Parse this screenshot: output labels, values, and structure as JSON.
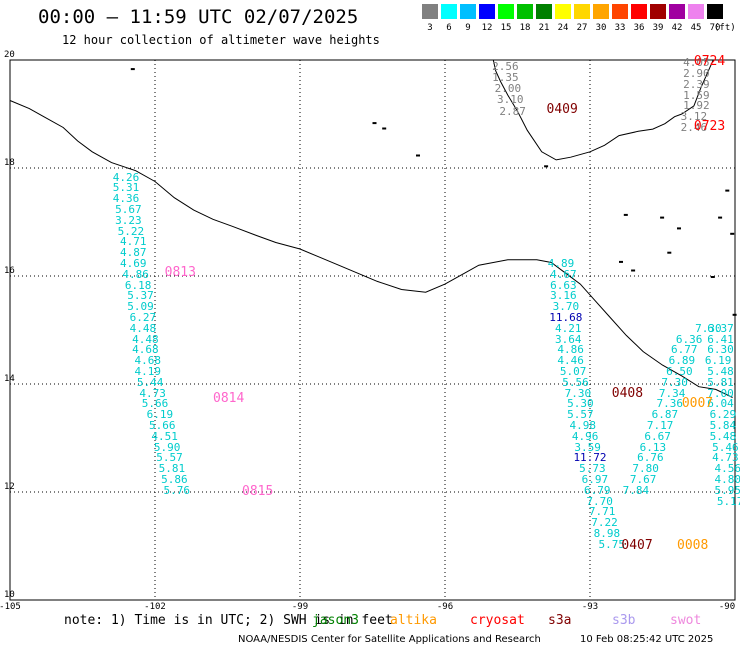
{
  "header": {
    "title": "00:00 — 11:59 UTC 02/07/2025",
    "subtitle": "12 hour collection of altimeter wave heights"
  },
  "legend": {
    "levels": [
      "3",
      "6",
      "9",
      "12",
      "15",
      "18",
      "21",
      "24",
      "27",
      "30",
      "33",
      "36",
      "39",
      "42",
      "45",
      "70"
    ],
    "colors": [
      "#808080",
      "#00ffff",
      "#00bfff",
      "#0000ff",
      "#00ff00",
      "#00c000",
      "#008000",
      "#ffff00",
      "#ffd700",
      "#ffa500",
      "#ff4500",
      "#ff0000",
      "#a00000",
      "#a000a0",
      "#ee82ee",
      "#000000"
    ],
    "unit": "(ft)"
  },
  "axes": {
    "lat_labels": [
      {
        "text": "20",
        "lat": 20
      },
      {
        "text": "18",
        "lat": 18
      },
      {
        "text": "16",
        "lat": 16
      },
      {
        "text": "14",
        "lat": 14
      },
      {
        "text": "12",
        "lat": 12
      },
      {
        "text": "10",
        "lat": 10
      }
    ],
    "lon_labels": [
      {
        "text": "-105",
        "lon": -105
      },
      {
        "text": "-102",
        "lon": -102
      },
      {
        "text": "-99",
        "lon": -99
      },
      {
        "text": "-96",
        "lon": -96
      },
      {
        "text": "-93",
        "lon": -93
      },
      {
        "text": "-90",
        "lon": -90
      }
    ],
    "lon_range": [
      -105,
      -90
    ],
    "lat_range": [
      10,
      20
    ]
  },
  "colors": {
    "cyan": "#00cccc",
    "gray": "#808080",
    "blue": "#0000b0",
    "darkred": "#800000",
    "red": "#ff0000",
    "pink": "#ff66cc",
    "orange": "#ff9900",
    "green": "#008000",
    "lilac": "#aa99ee",
    "magenta": "#ee88dd"
  },
  "tracks": [
    {
      "id": "track-west",
      "color": "#00cccc",
      "points": [
        {
          "lon": -102.6,
          "lat": 17.84,
          "v": "4.26"
        },
        {
          "lon": -102.6,
          "lat": 17.64,
          "v": "5.31"
        },
        {
          "lon": -102.6,
          "lat": 17.44,
          "v": "4.36"
        },
        {
          "lon": -102.55,
          "lat": 17.24,
          "v": "5.67"
        },
        {
          "lon": -102.55,
          "lat": 17.04,
          "v": "3.23"
        },
        {
          "lon": -102.5,
          "lat": 16.84,
          "v": "5.22"
        },
        {
          "lon": -102.45,
          "lat": 16.64,
          "v": "4.71"
        },
        {
          "lon": -102.45,
          "lat": 16.44,
          "v": "4.87"
        },
        {
          "lon": -102.45,
          "lat": 16.24,
          "v": "4.69"
        },
        {
          "lon": -102.4,
          "lat": 16.04,
          "v": "4.86"
        },
        {
          "lon": -102.35,
          "lat": 15.84,
          "v": "6.18"
        },
        {
          "lon": -102.3,
          "lat": 15.64,
          "v": "5.37"
        },
        {
          "lon": -102.3,
          "lat": 15.44,
          "v": "5.09"
        },
        {
          "lon": -102.25,
          "lat": 15.24,
          "v": "6.27"
        },
        {
          "lon": -102.25,
          "lat": 15.04,
          "v": "4.48"
        },
        {
          "lon": -102.2,
          "lat": 14.84,
          "v": "4.48"
        },
        {
          "lon": -102.2,
          "lat": 14.64,
          "v": "4.68"
        },
        {
          "lon": -102.15,
          "lat": 14.44,
          "v": "4.68"
        },
        {
          "lon": -102.15,
          "lat": 14.24,
          "v": "4.19"
        },
        {
          "lon": -102.1,
          "lat": 14.04,
          "v": "5.44"
        },
        {
          "lon": -102.05,
          "lat": 13.84,
          "v": "4.73"
        },
        {
          "lon": -102.0,
          "lat": 13.64,
          "v": "5.66"
        },
        {
          "lon": -101.9,
          "lat": 13.44,
          "v": "6.19"
        },
        {
          "lon": -101.85,
          "lat": 13.24,
          "v": "5.66"
        },
        {
          "lon": -101.8,
          "lat": 13.04,
          "v": "4.51"
        },
        {
          "lon": -101.75,
          "lat": 12.84,
          "v": "5.90"
        },
        {
          "lon": -101.7,
          "lat": 12.64,
          "v": "5.57"
        },
        {
          "lon": -101.65,
          "lat": 12.44,
          "v": "5.81"
        },
        {
          "lon": -101.6,
          "lat": 12.24,
          "v": "5.86"
        },
        {
          "lon": -101.55,
          "lat": 12.04,
          "v": "5.76"
        }
      ]
    },
    {
      "id": "track-gulf",
      "color": "#808080",
      "points": [
        {
          "lon": -94.75,
          "lat": 19.88,
          "v": "2.56"
        },
        {
          "lon": -94.75,
          "lat": 19.68,
          "v": "1.35"
        },
        {
          "lon": -94.7,
          "lat": 19.48,
          "v": "2.00"
        },
        {
          "lon": -94.65,
          "lat": 19.28,
          "v": "3.10"
        },
        {
          "lon": -94.6,
          "lat": 19.06,
          "v": "2.87"
        }
      ]
    },
    {
      "id": "track-east-top",
      "color": "#808080",
      "points": [
        {
          "lon": -90.8,
          "lat": 19.96,
          "v": "4.05"
        },
        {
          "lon": -90.8,
          "lat": 19.76,
          "v": "2.90"
        },
        {
          "lon": -90.8,
          "lat": 19.56,
          "v": "2.39"
        },
        {
          "lon": -90.8,
          "lat": 19.36,
          "v": "1.59"
        },
        {
          "lon": -90.8,
          "lat": 19.16,
          "v": "1.92"
        },
        {
          "lon": -90.85,
          "lat": 18.96,
          "v": "3.12"
        },
        {
          "lon": -90.85,
          "lat": 18.76,
          "v": "2.46"
        }
      ]
    },
    {
      "id": "track-central",
      "color": "#00cccc",
      "points": [
        {
          "lon": -93.6,
          "lat": 16.24,
          "v": "4.89"
        },
        {
          "lon": -93.55,
          "lat": 16.04,
          "v": "4.67"
        },
        {
          "lon": -93.55,
          "lat": 15.84,
          "v": "6.63"
        },
        {
          "lon": -93.55,
          "lat": 15.64,
          "v": "3.16"
        },
        {
          "lon": -93.5,
          "lat": 15.44,
          "v": "3.70"
        },
        {
          "lon": -93.5,
          "lat": 15.24,
          "v": "11.68"
        },
        {
          "lon": -93.45,
          "lat": 15.04,
          "v": "4.21"
        },
        {
          "lon": -93.45,
          "lat": 14.84,
          "v": "3.64"
        },
        {
          "lon": -93.4,
          "lat": 14.64,
          "v": "4.86"
        },
        {
          "lon": -93.4,
          "lat": 14.44,
          "v": "4.46"
        },
        {
          "lon": -93.35,
          "lat": 14.24,
          "v": "5.07"
        },
        {
          "lon": -93.3,
          "lat": 14.04,
          "v": "5.56"
        },
        {
          "lon": -93.25,
          "lat": 13.84,
          "v": "7.30"
        },
        {
          "lon": -93.2,
          "lat": 13.64,
          "v": "5.30"
        },
        {
          "lon": -93.2,
          "lat": 13.44,
          "v": "5.57"
        },
        {
          "lon": -93.15,
          "lat": 13.24,
          "v": "4.98"
        },
        {
          "lon": -93.1,
          "lat": 13.04,
          "v": "4.96"
        },
        {
          "lon": -93.05,
          "lat": 12.84,
          "v": "3.59"
        },
        {
          "lon": -93.0,
          "lat": 12.64,
          "v": "11.72"
        },
        {
          "lon": -92.95,
          "lat": 12.44,
          "v": "5.73"
        },
        {
          "lon": -92.9,
          "lat": 12.24,
          "v": "6.97"
        },
        {
          "lon": -92.85,
          "lat": 12.04,
          "v": "6.79"
        },
        {
          "lon": -92.8,
          "lat": 11.84,
          "v": "7.70"
        },
        {
          "lon": -92.75,
          "lat": 11.64,
          "v": "7.71"
        },
        {
          "lon": -92.7,
          "lat": 11.44,
          "v": "7.22"
        },
        {
          "lon": -92.65,
          "lat": 11.24,
          "v": "8.98"
        },
        {
          "lon": -92.55,
          "lat": 11.04,
          "v": "5.75"
        }
      ]
    },
    {
      "id": "track-east-a",
      "color": "#00cccc",
      "points": [
        {
          "lon": -90.95,
          "lat": 14.84,
          "v": "6.36"
        },
        {
          "lon": -91.05,
          "lat": 14.64,
          "v": "6.77"
        },
        {
          "lon": -91.1,
          "lat": 14.44,
          "v": "6.89"
        },
        {
          "lon": -91.15,
          "lat": 14.24,
          "v": "6.50"
        },
        {
          "lon": -91.25,
          "lat": 14.04,
          "v": "7.30"
        },
        {
          "lon": -91.3,
          "lat": 13.84,
          "v": "7.34"
        },
        {
          "lon": -91.35,
          "lat": 13.64,
          "v": "7.36"
        },
        {
          "lon": -91.45,
          "lat": 13.44,
          "v": "6.87"
        },
        {
          "lon": -91.55,
          "lat": 13.24,
          "v": "7.17"
        },
        {
          "lon": -91.6,
          "lat": 13.04,
          "v": "6.67"
        },
        {
          "lon": -91.7,
          "lat": 12.84,
          "v": "6.13"
        },
        {
          "lon": -91.75,
          "lat": 12.64,
          "v": "6.76"
        },
        {
          "lon": -91.85,
          "lat": 12.44,
          "v": "7.80"
        },
        {
          "lon": -91.9,
          "lat": 12.24,
          "v": "7.67"
        },
        {
          "lon": -92.05,
          "lat": 12.04,
          "v": "7.84"
        }
      ]
    },
    {
      "id": "track-east-b",
      "color": "#00cccc",
      "points": [
        {
          "lon": -90.55,
          "lat": 15.04,
          "v": "7.30"
        },
        {
          "lon": -90.3,
          "lat": 15.04,
          "v": "6.37"
        },
        {
          "lon": -90.3,
          "lat": 14.84,
          "v": "6.41"
        },
        {
          "lon": -90.3,
          "lat": 14.64,
          "v": "6.30"
        },
        {
          "lon": -90.35,
          "lat": 14.44,
          "v": "6.19"
        },
        {
          "lon": -90.3,
          "lat": 14.24,
          "v": "5.48"
        },
        {
          "lon": -90.3,
          "lat": 14.04,
          "v": "5.81"
        },
        {
          "lon": -90.3,
          "lat": 13.84,
          "v": "7.00"
        },
        {
          "lon": -90.3,
          "lat": 13.64,
          "v": "6.04"
        },
        {
          "lon": -90.25,
          "lat": 13.44,
          "v": "6.29"
        },
        {
          "lon": -90.25,
          "lat": 13.24,
          "v": "5.84"
        },
        {
          "lon": -90.25,
          "lat": 13.04,
          "v": "5.48"
        },
        {
          "lon": -90.2,
          "lat": 12.84,
          "v": "5.46"
        },
        {
          "lon": -90.2,
          "lat": 12.64,
          "v": "4.73"
        },
        {
          "lon": -90.15,
          "lat": 12.44,
          "v": "4.56"
        },
        {
          "lon": -90.15,
          "lat": 12.24,
          "v": "4.80"
        },
        {
          "lon": -90.15,
          "lat": 12.04,
          "v": "5.95"
        },
        {
          "lon": -90.1,
          "lat": 11.84,
          "v": "5.17"
        }
      ]
    }
  ],
  "pass_tags": [
    {
      "text": "0813",
      "lon": -101.8,
      "lat": 16.08,
      "color": "#ff66cc"
    },
    {
      "text": "0814",
      "lon": -100.8,
      "lat": 13.75,
      "color": "#ff66cc"
    },
    {
      "text": "0815",
      "lon": -100.2,
      "lat": 12.02,
      "color": "#ff66cc"
    },
    {
      "text": "0409",
      "lon": -93.9,
      "lat": 19.09,
      "color": "#800000"
    },
    {
      "text": "0724",
      "lon": -90.85,
      "lat": 19.98,
      "color": "#ff0000"
    },
    {
      "text": "0723",
      "lon": -90.85,
      "lat": 18.77,
      "color": "#ff0000"
    },
    {
      "text": "0408",
      "lon": -92.55,
      "lat": 13.83,
      "color": "#800000"
    },
    {
      "text": "0407",
      "lon": -92.35,
      "lat": 11.02,
      "color": "#800000"
    },
    {
      "text": "0007",
      "lon": -91.1,
      "lat": 13.65,
      "color": "#ff9900"
    },
    {
      "text": "0008",
      "lon": -91.2,
      "lat": 11.02,
      "color": "#ff9900"
    }
  ],
  "note": {
    "text": "note: 1) Time is in UTC; 2) SWH is in feet"
  },
  "satellites": [
    {
      "name": "jason3",
      "color": "#008000"
    },
    {
      "name": "altika",
      "color": "#ff9900"
    },
    {
      "name": "cryosat",
      "color": "#ff0000"
    },
    {
      "name": "s3a",
      "color": "#800000"
    },
    {
      "name": "s3b",
      "color": "#aa99ee"
    },
    {
      "name": "swot",
      "color": "#ee88dd"
    }
  ],
  "footer": {
    "credit": "NOAA/NESDIS Center for Satellite Applications and Research",
    "stamp": "10 Feb 08:25:42 UTC 2025"
  }
}
